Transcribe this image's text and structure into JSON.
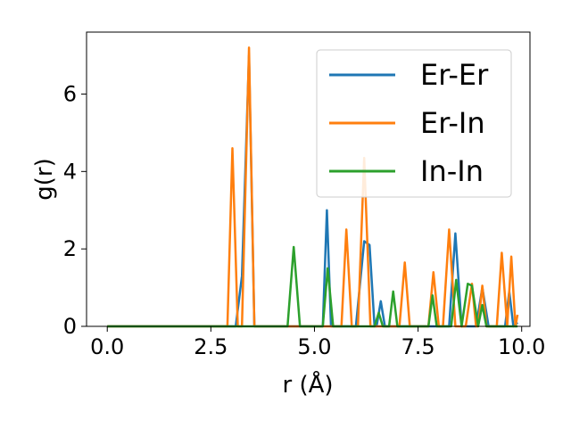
{
  "chart_data": {
    "type": "line",
    "xlabel": "r (Å)",
    "ylabel": "g(r)",
    "xlim": [
      -0.5,
      10.2
    ],
    "ylim": [
      0,
      7.6
    ],
    "xticks": [
      0.0,
      2.5,
      5.0,
      7.5,
      10.0
    ],
    "xtick_labels": [
      "0.0",
      "2.5",
      "5.0",
      "7.5",
      "10.0"
    ],
    "yticks": [
      0,
      2,
      4,
      6
    ],
    "ytick_labels": [
      "0",
      "2",
      "4",
      "6"
    ],
    "grid": false,
    "legend_position": "top-right",
    "series": [
      {
        "name": "Er-Er",
        "color": "#1f77b4",
        "x": [
          0.0,
          3.1,
          3.25,
          3.42,
          3.55,
          5.2,
          5.3,
          5.4,
          6.0,
          6.2,
          6.33,
          6.45,
          6.5,
          6.6,
          6.7,
          8.25,
          8.4,
          8.55,
          8.9,
          9.05,
          9.2,
          9.6,
          9.7,
          9.8,
          9.9
        ],
        "y": [
          0.0,
          0.0,
          1.3,
          7.0,
          0.0,
          0.0,
          3.0,
          0.0,
          0.0,
          2.2,
          2.1,
          0.0,
          0.0,
          0.65,
          0.0,
          0.0,
          2.4,
          0.0,
          0.0,
          1.0,
          0.0,
          0.0,
          0.9,
          0.0,
          0.1
        ]
      },
      {
        "name": "Er-In",
        "color": "#ff7f0e",
        "x": [
          0.0,
          2.9,
          3.02,
          3.15,
          3.25,
          3.42,
          3.55,
          5.65,
          5.77,
          5.9,
          6.05,
          6.2,
          6.35,
          7.05,
          7.18,
          7.3,
          7.75,
          7.87,
          8.0,
          8.1,
          8.25,
          8.4,
          8.65,
          8.8,
          8.9,
          8.95,
          9.05,
          9.15,
          9.4,
          9.52,
          9.65,
          9.75,
          9.85,
          9.9
        ],
        "y": [
          0.0,
          0.0,
          4.6,
          0.0,
          0.0,
          7.2,
          0.0,
          0.0,
          2.5,
          0.0,
          0.0,
          4.35,
          0.0,
          0.0,
          1.65,
          0.0,
          0.0,
          1.4,
          0.0,
          0.0,
          2.5,
          0.0,
          0.0,
          1.1,
          0.0,
          0.0,
          1.05,
          0.0,
          0.0,
          1.9,
          0.0,
          1.8,
          0.0,
          0.3
        ]
      },
      {
        "name": "In-In",
        "color": "#2ca02c",
        "x": [
          0.0,
          4.35,
          4.5,
          4.65,
          5.2,
          5.32,
          5.45,
          6.45,
          6.55,
          6.65,
          6.8,
          6.9,
          7.0,
          7.75,
          7.85,
          7.95,
          8.3,
          8.42,
          8.55,
          8.7,
          8.8,
          8.95,
          9.05,
          9.15,
          9.3,
          9.9
        ],
        "y": [
          0.0,
          0.0,
          2.05,
          0.0,
          0.0,
          1.5,
          0.0,
          0.0,
          0.35,
          0.0,
          0.0,
          0.9,
          0.0,
          0.0,
          0.8,
          0.0,
          0.0,
          1.2,
          0.0,
          1.1,
          1.05,
          0.0,
          0.55,
          0.0,
          0.0,
          0.0
        ]
      }
    ]
  }
}
